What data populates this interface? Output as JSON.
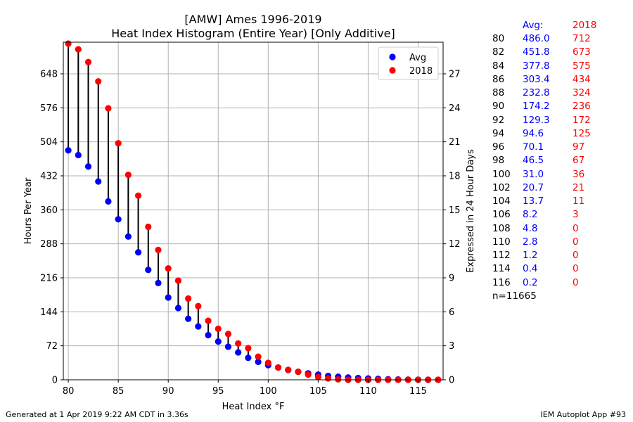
{
  "title": "[AMW] Ames 1996-2019",
  "subtitle": "Heat Index Histogram (Entire Year) [Only Additive]",
  "footer_left": "Generated at 1 Apr 2019 9:22 AM CDT in 3.36s",
  "footer_right": "IEM Autoplot App #93",
  "colors": {
    "avg": "#0000ff",
    "year": "#ff0000",
    "stem": "#000000",
    "grid": "#b0b0b0"
  },
  "chart_data": {
    "type": "scatter",
    "xlabel": "Heat Index °F",
    "ylabel": "Hours Per Year",
    "ylabel_right": "Expressed in 24 Hour Days",
    "xlim": [
      79.5,
      117.5
    ],
    "ylim": [
      0,
      715
    ],
    "xticks": [
      80,
      85,
      90,
      95,
      100,
      105,
      110,
      115
    ],
    "yticks": [
      0,
      72,
      144,
      216,
      288,
      360,
      432,
      504,
      576,
      648
    ],
    "yticks_right": [
      0,
      3,
      6,
      9,
      12,
      15,
      18,
      21,
      24,
      27
    ],
    "grid": true,
    "legend_position": "top-right",
    "series": [
      {
        "name": "Avg",
        "color": "#0000ff",
        "x": [
          80,
          81,
          82,
          83,
          84,
          85,
          86,
          87,
          88,
          89,
          90,
          91,
          92,
          93,
          94,
          95,
          96,
          97,
          98,
          99,
          100,
          101,
          102,
          103,
          104,
          105,
          106,
          107,
          108,
          109,
          110,
          111,
          112,
          113,
          114,
          115,
          116,
          117
        ],
        "y": [
          486.0,
          476,
          451.8,
          420,
          377.8,
          340,
          303.4,
          270,
          232.8,
          205,
          174.2,
          152,
          129.3,
          113,
          94.6,
          81,
          70.1,
          58,
          46.5,
          38,
          31.0,
          26,
          20.7,
          17,
          13.7,
          11,
          8.2,
          6.5,
          4.8,
          3.8,
          2.8,
          2.0,
          1.2,
          0.8,
          0.4,
          0.3,
          0.2,
          0.1
        ]
      },
      {
        "name": "2018",
        "color": "#ff0000",
        "x": [
          80,
          81,
          82,
          83,
          84,
          85,
          86,
          87,
          88,
          89,
          90,
          91,
          92,
          93,
          94,
          95,
          96,
          97,
          98,
          99,
          100,
          101,
          102,
          103,
          104,
          105,
          106,
          107,
          108,
          109,
          110,
          111,
          112,
          113,
          114,
          115,
          116,
          117
        ],
        "y": [
          712,
          700,
          673,
          632,
          575,
          501,
          434,
          390,
          324,
          275,
          236,
          210,
          172,
          156,
          125,
          108,
          97,
          77,
          67,
          49,
          36,
          26,
          21,
          17,
          11,
          6,
          3,
          1,
          0,
          0,
          0,
          0,
          0,
          0,
          0,
          0,
          0,
          0
        ]
      }
    ]
  },
  "table": {
    "header_avg": "Avg:",
    "header_year": "2018",
    "rows": [
      {
        "temp": "80",
        "avg": "486.0",
        "year": "712"
      },
      {
        "temp": "82",
        "avg": "451.8",
        "year": "673"
      },
      {
        "temp": "84",
        "avg": "377.8",
        "year": "575"
      },
      {
        "temp": "86",
        "avg": "303.4",
        "year": "434"
      },
      {
        "temp": "88",
        "avg": "232.8",
        "year": "324"
      },
      {
        "temp": "90",
        "avg": "174.2",
        "year": "236"
      },
      {
        "temp": "92",
        "avg": "129.3",
        "year": "172"
      },
      {
        "temp": "94",
        "avg": "94.6",
        "year": "125"
      },
      {
        "temp": "96",
        "avg": "70.1",
        "year": "97"
      },
      {
        "temp": "98",
        "avg": "46.5",
        "year": "67"
      },
      {
        "temp": "100",
        "avg": "31.0",
        "year": "36"
      },
      {
        "temp": "102",
        "avg": "20.7",
        "year": "21"
      },
      {
        "temp": "104",
        "avg": "13.7",
        "year": "11"
      },
      {
        "temp": "106",
        "avg": "8.2",
        "year": "3"
      },
      {
        "temp": "108",
        "avg": "4.8",
        "year": "0"
      },
      {
        "temp": "110",
        "avg": "2.8",
        "year": "0"
      },
      {
        "temp": "112",
        "avg": "1.2",
        "year": "0"
      },
      {
        "temp": "114",
        "avg": "0.4",
        "year": "0"
      },
      {
        "temp": "116",
        "avg": "0.2",
        "year": "0"
      }
    ],
    "count": "n=11665"
  }
}
